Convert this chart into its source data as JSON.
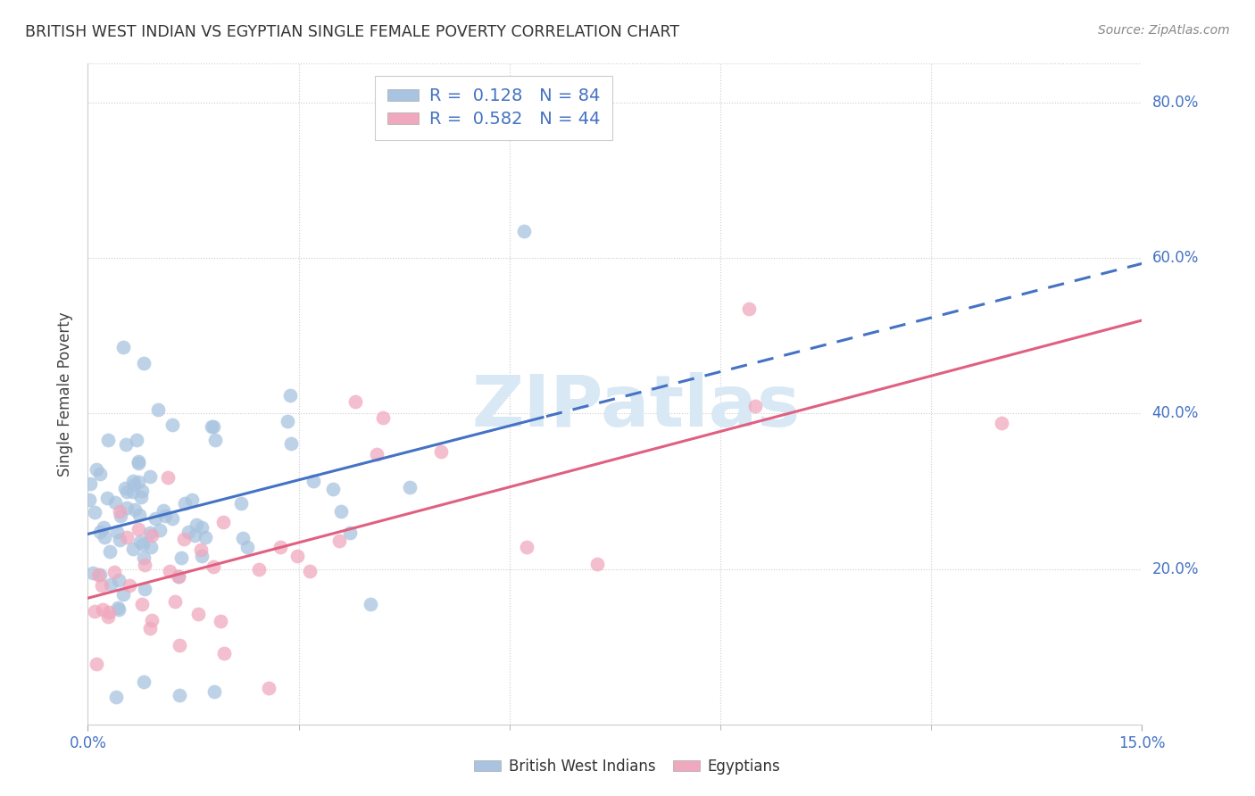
{
  "title": "BRITISH WEST INDIAN VS EGYPTIAN SINGLE FEMALE POVERTY CORRELATION CHART",
  "source": "Source: ZipAtlas.com",
  "ylabel": "Single Female Poverty",
  "xlim": [
    0.0,
    0.15
  ],
  "ylim": [
    0.0,
    0.85
  ],
  "bwi_R": 0.128,
  "bwi_N": 84,
  "egy_R": 0.582,
  "egy_N": 44,
  "bwi_color": "#a8c4e0",
  "egy_color": "#f0a8be",
  "bwi_line_color": "#4472c4",
  "egy_line_color": "#e06080",
  "legend_text_color": "#4472c4",
  "watermark_color": "#d8e8f4",
  "background_color": "#ffffff",
  "grid_color": "#cccccc",
  "axis_label_color": "#4472c4",
  "title_color": "#333333",
  "source_color": "#888888"
}
